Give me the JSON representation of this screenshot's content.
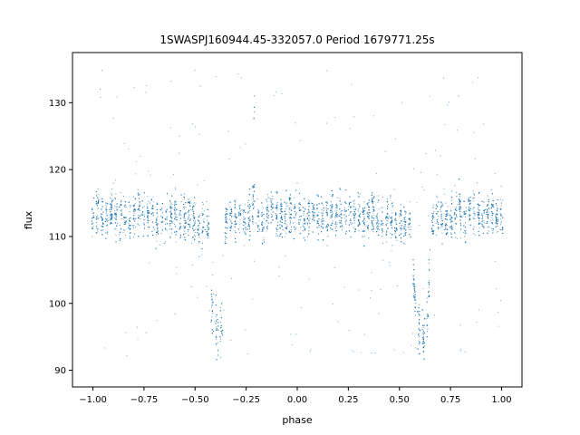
{
  "chart_data": {
    "type": "scatter",
    "title": "1SWASPJ160944.45-332057.0 Period 1679771.25s",
    "xlabel": "phase",
    "ylabel": "flux",
    "xlim": [
      -1.1,
      1.1
    ],
    "ylim": [
      87.5,
      137.5
    ],
    "xticks": [
      -1.0,
      -0.75,
      -0.5,
      -0.25,
      0.0,
      0.25,
      0.5,
      0.75,
      1.0
    ],
    "xtick_labels": [
      "−1.00",
      "−0.75",
      "−0.50",
      "−0.25",
      "0.00",
      "0.25",
      "0.50",
      "0.75",
      "1.00"
    ],
    "yticks": [
      90,
      100,
      110,
      120,
      130
    ],
    "ytick_labels": [
      "90",
      "100",
      "110",
      "120",
      "130"
    ],
    "grid": false,
    "point_color": "#1f77b4",
    "series": [
      {
        "phase_period": 1.0,
        "baseline_flux": 113,
        "typical_range": [
          105,
          122
        ],
        "points": [
          [
            -1.0,
            112
          ],
          [
            -0.98,
            115
          ],
          [
            -0.965,
            132
          ],
          [
            -0.96,
            113
          ],
          [
            -0.95,
            111
          ],
          [
            -0.92,
            114
          ],
          [
            -0.9,
            118
          ],
          [
            -0.88,
            112
          ],
          [
            -0.85,
            116
          ],
          [
            -0.82,
            110
          ],
          [
            -0.8,
            114
          ],
          [
            -0.78,
            117
          ],
          [
            -0.75,
            112
          ],
          [
            -0.72,
            115
          ],
          [
            -0.7,
            111
          ],
          [
            -0.67,
            114
          ],
          [
            -0.65,
            109
          ],
          [
            -0.62,
            113
          ],
          [
            -0.6,
            115
          ],
          [
            -0.57,
            110
          ],
          [
            -0.55,
            112
          ],
          [
            -0.52,
            114
          ],
          [
            -0.5,
            110
          ],
          [
            -0.48,
            107
          ],
          [
            -0.45,
            111
          ],
          [
            -0.42,
            101
          ],
          [
            -0.4,
            97
          ],
          [
            -0.38,
            95
          ],
          [
            -0.36,
            99
          ],
          [
            -0.35,
            109
          ],
          [
            -0.32,
            113
          ],
          [
            -0.3,
            112
          ],
          [
            -0.27,
            114
          ],
          [
            -0.25,
            111
          ],
          [
            -0.22,
            115
          ],
          [
            -0.21,
            131
          ],
          [
            -0.2,
            112
          ],
          [
            -0.17,
            109
          ],
          [
            -0.15,
            114
          ],
          [
            -0.12,
            116
          ],
          [
            -0.1,
            113
          ],
          [
            -0.07,
            111
          ],
          [
            -0.05,
            115
          ],
          [
            -0.02,
            112
          ],
          [
            0.0,
            118
          ],
          [
            0.02,
            113
          ],
          [
            0.05,
            110
          ],
          [
            0.07,
            115
          ],
          [
            0.1,
            112
          ],
          [
            0.12,
            114
          ],
          [
            0.15,
            110
          ],
          [
            0.17,
            116
          ],
          [
            0.2,
            113
          ],
          [
            0.22,
            111
          ],
          [
            0.25,
            114
          ],
          [
            0.27,
            112
          ],
          [
            0.3,
            116
          ],
          [
            0.32,
            110
          ],
          [
            0.35,
            113
          ],
          [
            0.37,
            115
          ],
          [
            0.4,
            111
          ],
          [
            0.42,
            109
          ],
          [
            0.45,
            113
          ],
          [
            0.48,
            110
          ],
          [
            0.5,
            112
          ],
          [
            0.52,
            109
          ],
          [
            0.55,
            111
          ],
          [
            0.58,
            100
          ],
          [
            0.6,
            96
          ],
          [
            0.62,
            94
          ],
          [
            0.64,
            98
          ],
          [
            0.65,
            108
          ],
          [
            0.68,
            112
          ],
          [
            0.7,
            114
          ],
          [
            0.72,
            111
          ],
          [
            0.75,
            113
          ],
          [
            0.78,
            116
          ],
          [
            0.79,
            131
          ],
          [
            0.8,
            112
          ],
          [
            0.82,
            110
          ],
          [
            0.85,
            115
          ],
          [
            0.88,
            118
          ],
          [
            0.9,
            112
          ],
          [
            0.92,
            114
          ],
          [
            0.95,
            117
          ],
          [
            0.97,
            113
          ],
          [
            1.0,
            115
          ]
        ]
      }
    ]
  }
}
